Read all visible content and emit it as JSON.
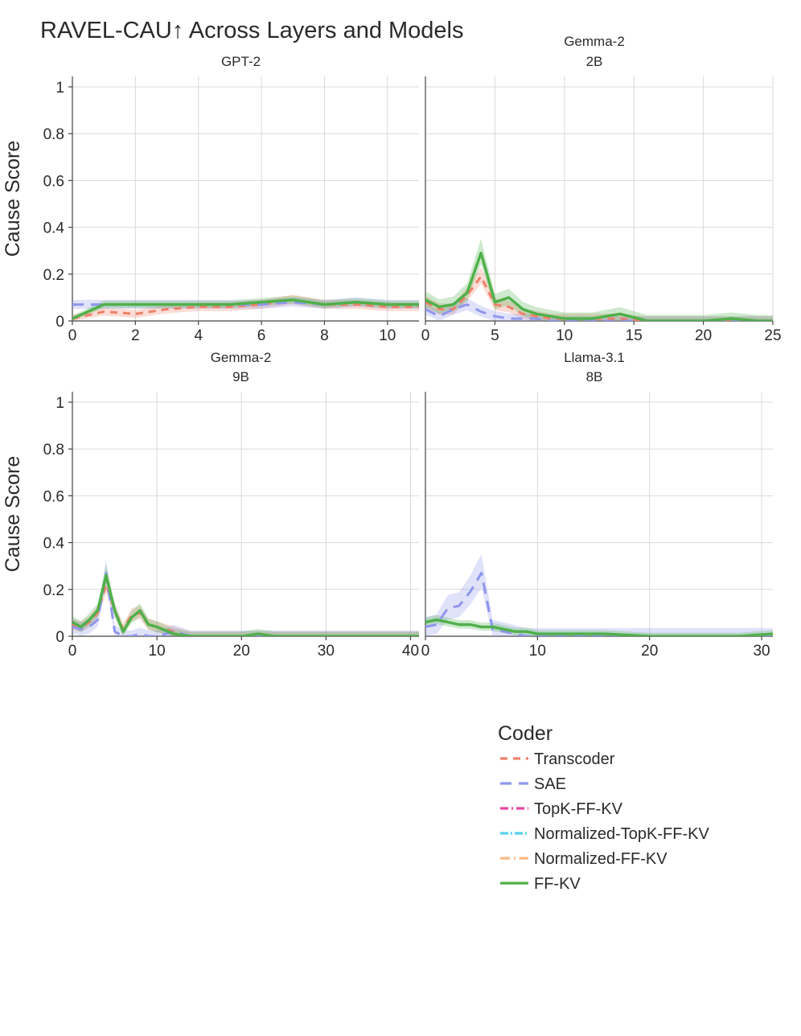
{
  "chart_data": {
    "type": "line",
    "title": "RAVEL-CAU↑ Across Layers and Models",
    "ylabel": "Cause Score",
    "yticks": [
      "0",
      "0.2",
      "0.4",
      "0.6",
      "0.8",
      "1"
    ],
    "ylim": [
      0,
      1.05
    ],
    "legend": {
      "title": "Coder",
      "placement": "bottom-right",
      "items": [
        {
          "name": "Transcoder",
          "color": "#f0806a"
        },
        {
          "name": "SAE",
          "color": "#8f96ee"
        },
        {
          "name": "TopK-FF-KV",
          "color": "#e8479e"
        },
        {
          "name": "Normalized-TopK-FF-KV",
          "color": "#55d3ee"
        },
        {
          "name": "Normalized-FF-KV",
          "color": "#fbb883"
        },
        {
          "name": "FF-KV",
          "color": "#4fb04a"
        }
      ]
    },
    "panels": [
      {
        "title": [
          "GPT-2"
        ],
        "xlim": [
          0,
          11
        ],
        "xticks": [
          "0",
          "2",
          "4",
          "6",
          "8",
          "10"
        ],
        "series": [
          {
            "name": "Transcoder",
            "x": [
              0,
              1,
              2,
              3,
              4,
              5,
              6,
              7,
              8,
              9,
              10,
              11
            ],
            "y": [
              0.01,
              0.04,
              0.03,
              0.05,
              0.06,
              0.06,
              0.07,
              0.09,
              0.07,
              0.07,
              0.06,
              0.06
            ],
            "band": 0.03
          },
          {
            "name": "SAE",
            "x": [
              0,
              1,
              2,
              3,
              4,
              5,
              6,
              7,
              8,
              9,
              10,
              11
            ],
            "y": [
              0.07,
              0.07,
              0.07,
              0.07,
              0.07,
              0.07,
              0.07,
              0.08,
              0.07,
              0.08,
              0.07,
              0.07
            ],
            "band": 0.03
          },
          {
            "name": "FF-KV",
            "x": [
              0,
              1,
              2,
              3,
              4,
              5,
              6,
              7,
              8,
              9,
              10,
              11
            ],
            "y": [
              0.01,
              0.07,
              0.07,
              0.07,
              0.07,
              0.07,
              0.08,
              0.09,
              0.07,
              0.08,
              0.07,
              0.07
            ],
            "band": 0.025
          }
        ]
      },
      {
        "title": [
          "Gemma-2",
          "2B"
        ],
        "xlim": [
          0,
          25
        ],
        "xticks": [
          "0",
          "5",
          "10",
          "15",
          "20",
          "25"
        ],
        "series": [
          {
            "name": "Transcoder",
            "x": [
              0,
              1,
              2,
              3,
              4,
              5,
              6,
              7,
              8,
              9,
              10,
              12,
              14,
              16,
              18,
              20,
              22,
              24,
              25
            ],
            "y": [
              0.08,
              0.05,
              0.05,
              0.11,
              0.19,
              0.07,
              0.06,
              0.03,
              0.02,
              0.01,
              0.01,
              0.01,
              0.01,
              0.0,
              0.0,
              0.0,
              0.0,
              0.0,
              0.0
            ],
            "band": 0.04
          },
          {
            "name": "SAE",
            "x": [
              0,
              1,
              2,
              3,
              4,
              5,
              6,
              7,
              8,
              9,
              10,
              12,
              14,
              16,
              18,
              20,
              22,
              24,
              25
            ],
            "y": [
              0.05,
              0.02,
              0.05,
              0.07,
              0.04,
              0.02,
              0.01,
              0.01,
              0.01,
              0.0,
              0.0,
              0.0,
              0.0,
              0.0,
              0.0,
              0.0,
              0.0,
              0.0,
              0.0
            ],
            "band": 0.04
          },
          {
            "name": "FF-KV",
            "x": [
              0,
              1,
              2,
              3,
              4,
              5,
              6,
              7,
              8,
              9,
              10,
              12,
              14,
              16,
              18,
              20,
              22,
              24,
              25
            ],
            "y": [
              0.09,
              0.06,
              0.07,
              0.12,
              0.29,
              0.08,
              0.1,
              0.05,
              0.03,
              0.02,
              0.01,
              0.01,
              0.03,
              0.0,
              0.0,
              0.0,
              0.01,
              0.0,
              0.0
            ],
            "band": 0.05
          }
        ]
      },
      {
        "title": [
          "Gemma-2",
          "9B"
        ],
        "xlim": [
          0,
          41
        ],
        "xticks": [
          "0",
          "10",
          "20",
          "30",
          "40"
        ],
        "series": [
          {
            "name": "Transcoder",
            "x": [
              0,
              1,
              2,
              3,
              4,
              5,
              6,
              7,
              8,
              9,
              10,
              12,
              14,
              16,
              20,
              24,
              28,
              32,
              36,
              41
            ],
            "y": [
              0.05,
              0.04,
              0.06,
              0.1,
              0.22,
              0.11,
              0.03,
              0.09,
              0.1,
              0.05,
              0.04,
              0.02,
              0.0,
              0.0,
              0.0,
              0.0,
              0.0,
              0.0,
              0.0,
              0.0
            ],
            "band": 0.04
          },
          {
            "name": "SAE",
            "x": [
              0,
              1,
              2,
              3,
              4,
              5,
              6,
              7,
              8,
              9,
              10,
              12,
              14,
              16,
              20,
              24,
              28,
              32,
              36,
              41
            ],
            "y": [
              0.04,
              0.03,
              0.04,
              0.07,
              0.27,
              0.02,
              0.0,
              0.0,
              0.01,
              0.0,
              0.0,
              0.02,
              0.0,
              0.0,
              0.0,
              0.0,
              0.0,
              0.0,
              0.0,
              0.0
            ],
            "band": 0.05
          },
          {
            "name": "FF-KV",
            "x": [
              0,
              1,
              2,
              3,
              4,
              5,
              6,
              7,
              8,
              9,
              10,
              12,
              14,
              16,
              20,
              22,
              24,
              28,
              32,
              36,
              41
            ],
            "y": [
              0.06,
              0.04,
              0.07,
              0.11,
              0.26,
              0.11,
              0.02,
              0.08,
              0.11,
              0.05,
              0.04,
              0.01,
              0.0,
              0.0,
              0.0,
              0.01,
              0.0,
              0.0,
              0.0,
              0.0,
              0.0
            ],
            "band": 0.04
          }
        ]
      },
      {
        "title": [
          "Llama-3.1",
          "8B"
        ],
        "xlim": [
          0,
          31
        ],
        "xticks": [
          "0",
          "10",
          "20",
          "30"
        ],
        "series": [
          {
            "name": "SAE",
            "x": [
              0,
              1,
              2,
              3,
              4,
              5,
              6,
              7,
              8,
              9,
              10,
              12,
              14,
              16,
              20,
              24,
              28,
              31
            ],
            "y": [
              0.04,
              0.05,
              0.12,
              0.13,
              0.19,
              0.27,
              0.03,
              0.02,
              0.01,
              0.0,
              0.0,
              0.0,
              0.0,
              0.0,
              0.0,
              0.0,
              0.0,
              0.0
            ],
            "band": 0.07
          },
          {
            "name": "FF-KV",
            "x": [
              0,
              1,
              2,
              3,
              4,
              5,
              6,
              7,
              8,
              9,
              10,
              12,
              14,
              16,
              20,
              24,
              28,
              31
            ],
            "y": [
              0.06,
              0.07,
              0.06,
              0.05,
              0.05,
              0.04,
              0.04,
              0.03,
              0.02,
              0.02,
              0.01,
              0.01,
              0.01,
              0.01,
              0.0,
              0.0,
              0.0,
              0.01
            ],
            "band": 0.03
          }
        ]
      }
    ]
  }
}
